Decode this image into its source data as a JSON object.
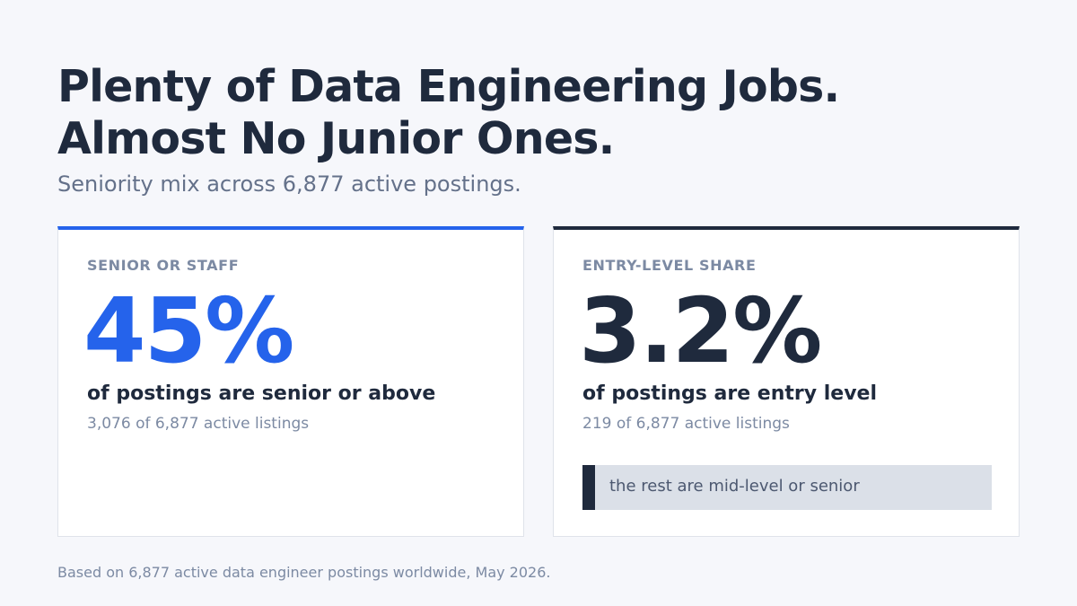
{
  "header": {
    "title_line1": "Plenty of Data Engineering Jobs.",
    "title_line2": "Almost No Junior Ones.",
    "subtitle": "Seniority mix across 6,877 active postings."
  },
  "cards": {
    "senior": {
      "label": "SENIOR OR STAFF",
      "value": "45%",
      "description": "of postings are senior or above",
      "detail": "3,076 of 6,877 active listings",
      "accent_color": "#2563eb"
    },
    "entry": {
      "label": "ENTRY-LEVEL SHARE",
      "value": "3.2%",
      "description": "of postings are entry level",
      "detail": "219 of 6,877 active listings",
      "callout": "the rest are mid-level or senior",
      "accent_color": "#1f2a3d"
    }
  },
  "footer": {
    "note": "Based on 6,877 active data engineer postings worldwide, May 2026."
  }
}
